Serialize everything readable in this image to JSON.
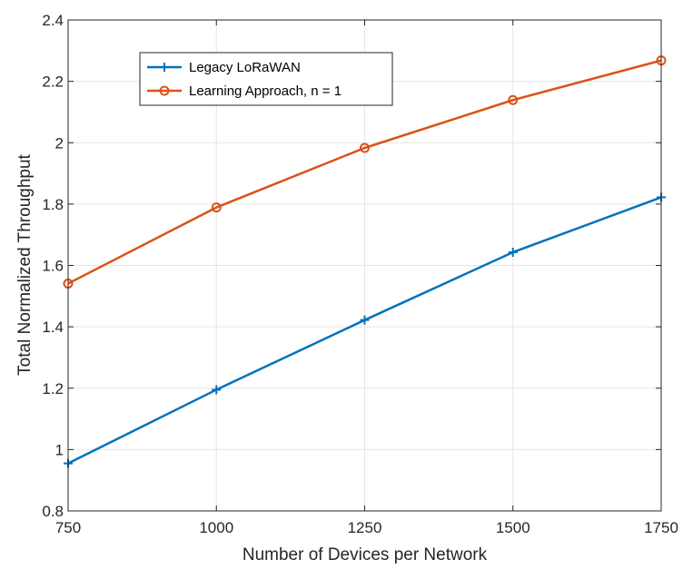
{
  "chart_data": {
    "type": "line",
    "xlabel": "Number of Devices per Network",
    "ylabel": "Total Normalized Throughput",
    "x": [
      750,
      1000,
      1250,
      1500,
      1750
    ],
    "xlim": [
      750,
      1750
    ],
    "ylim": [
      0.8,
      2.4
    ],
    "xticks": [
      "750",
      "1000",
      "1250",
      "1500",
      "1750"
    ],
    "yticks": [
      "0.8",
      "1",
      "1.2",
      "1.4",
      "1.6",
      "1.8",
      "2",
      "2.2",
      "2.4"
    ],
    "grid": true,
    "legend_position": "top-left",
    "series": [
      {
        "name": "Legacy LoRaWAN",
        "values": [
          0.955,
          1.195,
          1.422,
          1.643,
          1.822
        ],
        "color": "#0072BD",
        "marker": "plus"
      },
      {
        "name": "Learning Approach, n = 1",
        "values": [
          1.541,
          1.789,
          1.983,
          2.139,
          2.268
        ],
        "color": "#D95319",
        "marker": "circle"
      }
    ]
  }
}
